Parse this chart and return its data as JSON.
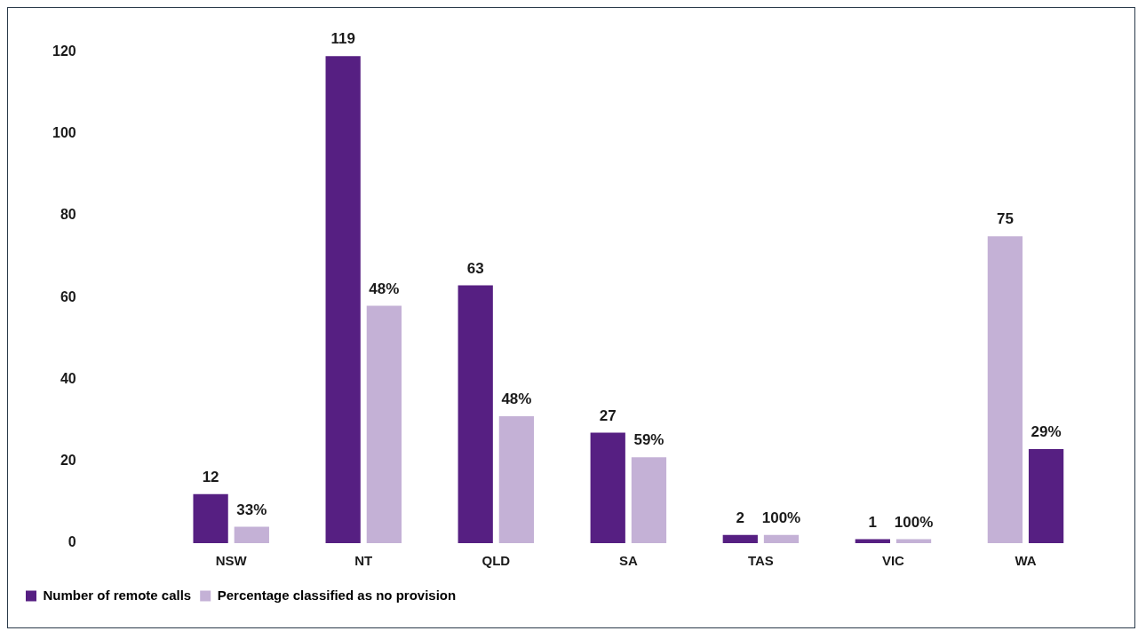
{
  "chart_data": {
    "type": "bar",
    "categories": [
      "NSW",
      "NT",
      "QLD",
      "SA",
      "TAS",
      "VIC",
      "WA"
    ],
    "series": [
      {
        "name": "Number of remote calls",
        "color": "#561f82",
        "colors": [
          "#561f82",
          "#561f82",
          "#561f82",
          "#561f82",
          "#561f82",
          "#561f82",
          "#c4b1d6"
        ],
        "values": [
          12,
          119,
          63,
          27,
          2,
          1,
          75
        ],
        "value_labels": [
          "12",
          "119",
          "63",
          "27",
          "2",
          "1",
          "75"
        ]
      },
      {
        "name": "Percentage classified as no provision",
        "color": "#c4b1d6",
        "colors": [
          "#c4b1d6",
          "#c4b1d6",
          "#c4b1d6",
          "#c4b1d6",
          "#c4b1d6",
          "#c4b1d6",
          "#561f82"
        ],
        "values": [
          4,
          58,
          31,
          21,
          2,
          1,
          23
        ]
      }
    ],
    "annotations": [
      {
        "text": "33%",
        "x": "NSW",
        "y": 4
      },
      {
        "text": "48%",
        "x": "NT",
        "y": 58
      },
      {
        "text": "48%",
        "x": "QLD",
        "y": 31
      },
      {
        "text": "59%",
        "x": "SA",
        "y": 21
      },
      {
        "text": "100%",
        "x": "TAS",
        "y": 2
      },
      {
        "text": "100%",
        "x": "VIC",
        "y": 1
      },
      {
        "text": "29%",
        "x": "WA",
        "y": 23
      }
    ],
    "ylim": [
      0,
      120
    ],
    "yticks": [
      0,
      20,
      40,
      60,
      80,
      100,
      120
    ],
    "grid": false,
    "legend": "bottom left"
  }
}
